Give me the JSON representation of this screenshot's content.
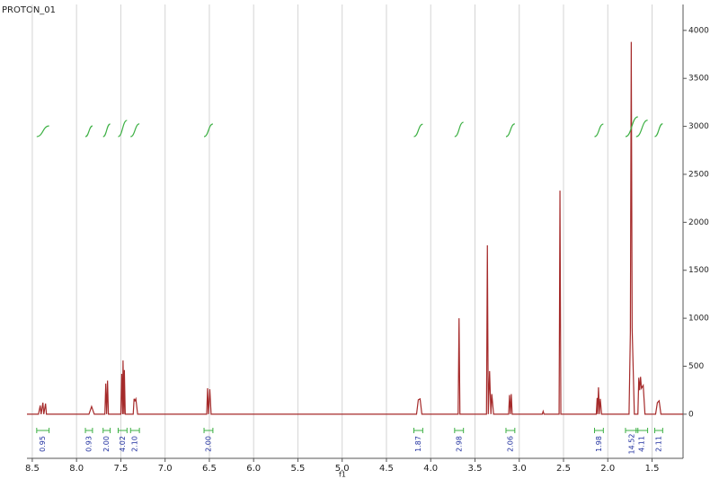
{
  "chart_data": {
    "type": "line",
    "title": "PROTON_01",
    "xlabel": "f1",
    "color": "#a52a2a",
    "integral_color": "#3cb043",
    "integral_label_color": "#1f2f9f",
    "x": [
      8.56,
      8.43,
      8.41,
      8.4,
      8.38,
      8.37,
      8.35,
      8.34,
      7.86,
      7.83,
      7.8,
      7.68,
      7.67,
      7.66,
      7.65,
      7.64,
      7.5,
      7.49,
      7.48,
      7.475,
      7.465,
      7.46,
      7.45,
      7.36,
      7.35,
      7.34,
      7.33,
      7.31,
      6.53,
      6.52,
      6.51,
      6.495,
      6.48,
      4.16,
      4.14,
      4.12,
      4.1,
      3.69,
      3.68,
      3.67,
      3.37,
      3.36,
      3.35,
      3.335,
      3.32,
      3.31,
      3.29,
      3.12,
      3.11,
      3.1,
      3.09,
      3.08,
      2.74,
      2.73,
      2.72,
      2.55,
      2.54,
      2.53,
      2.13,
      2.12,
      2.115,
      2.105,
      2.095,
      2.085,
      2.07,
      1.76,
      1.745,
      1.735,
      1.725,
      1.7,
      1.66,
      1.65,
      1.64,
      1.63,
      1.62,
      1.6,
      1.58,
      1.46,
      1.44,
      1.42,
      1.4,
      1.15
    ],
    "values": [
      0,
      0,
      90,
      0,
      120,
      0,
      110,
      0,
      0,
      80,
      0,
      0,
      320,
      0,
      350,
      0,
      0,
      420,
      0,
      560,
      0,
      460,
      0,
      0,
      160,
      140,
      160,
      0,
      0,
      270,
      0,
      260,
      0,
      0,
      150,
      160,
      0,
      0,
      1000,
      0,
      0,
      1760,
      0,
      450,
      0,
      210,
      0,
      0,
      200,
      0,
      210,
      0,
      0,
      30,
      0,
      0,
      2330,
      0,
      0,
      170,
      0,
      280,
      0,
      160,
      0,
      0,
      850,
      3880,
      900,
      0,
      0,
      380,
      250,
      390,
      270,
      300,
      0,
      0,
      120,
      140,
      0,
      0
    ],
    "xlim": [
      8.56,
      1.15
    ],
    "ylim": [
      -460,
      4270
    ],
    "xticks": [
      {
        "value": 8.5,
        "label": "8.5"
      },
      {
        "value": 8,
        "label": "8.0"
      },
      {
        "value": 7.5,
        "label": "7.5"
      },
      {
        "value": 7,
        "label": "7.0"
      },
      {
        "value": 6.5,
        "label": "6.5"
      },
      {
        "value": 6,
        "label": "6.0"
      },
      {
        "value": 5.5,
        "label": "5.5"
      },
      {
        "value": 5,
        "label": "5.0"
      },
      {
        "value": 4.5,
        "label": "4.5"
      },
      {
        "value": 4,
        "label": "4.0"
      },
      {
        "value": 3.5,
        "label": "3.5"
      },
      {
        "value": 3,
        "label": "3.0"
      },
      {
        "value": 2.5,
        "label": "2.5"
      },
      {
        "value": 2,
        "label": "2.0"
      },
      {
        "value": 1.5,
        "label": "1.5"
      }
    ],
    "yticks": [
      0,
      500,
      1000,
      1500,
      2000,
      2500,
      3000,
      3500,
      4000
    ],
    "grid": true,
    "integrals": {
      "ranges": [
        [
          8.45,
          8.31
        ],
        [
          7.9,
          7.82
        ],
        [
          7.7,
          7.62
        ],
        [
          7.53,
          7.43
        ],
        [
          7.39,
          7.29
        ],
        [
          6.56,
          6.46
        ],
        [
          4.19,
          4.09
        ],
        [
          3.73,
          3.63
        ],
        [
          3.15,
          3.05
        ],
        [
          2.15,
          2.05
        ],
        [
          1.8,
          1.66
        ],
        [
          1.68,
          1.55
        ],
        [
          1.47,
          1.38
        ]
      ],
      "values": [
        0.95,
        0.93,
        2,
        4.02,
        2.1,
        2,
        1.87,
        2.98,
        2.06,
        1.98,
        14.52,
        4.11,
        2.11
      ],
      "value_labels": [
        "0.95",
        "0.93",
        "2.00",
        "4.02",
        "2.10",
        "2.00",
        "1.87",
        "2.98",
        "2.06",
        "1.98",
        "14.52",
        "4.11",
        "2.11"
      ]
    }
  }
}
